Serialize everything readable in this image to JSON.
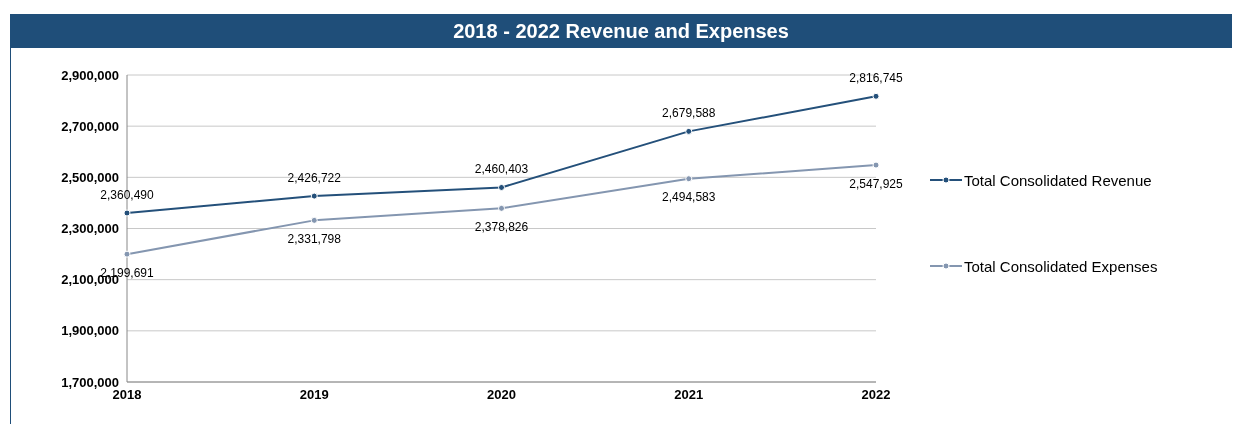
{
  "chart_data": {
    "type": "line",
    "title": "2018 - 2022 Revenue and Expenses",
    "categories": [
      "2018",
      "2019",
      "2020",
      "2021",
      "2022"
    ],
    "series": [
      {
        "name": "Total Consolidated Revenue",
        "color": "#24507a",
        "values": [
          2360490,
          2426722,
          2460403,
          2679588,
          2816745
        ],
        "value_labels": [
          "2,360,490",
          "2,426,722",
          "2,460,403",
          "2,679,588",
          "2,816,745"
        ]
      },
      {
        "name": "Total Consolidated Expenses",
        "color": "#8496b0",
        "values": [
          2199691,
          2331798,
          2378826,
          2494583,
          2547925
        ],
        "value_labels": [
          "2,199,691",
          "2,331,798",
          "2,378,826",
          "2,494,583",
          "2,547,925"
        ]
      }
    ],
    "ylim": [
      1700000,
      2900000
    ],
    "yticks": [
      {
        "value": 1700000,
        "label": "1,700,000"
      },
      {
        "value": 1900000,
        "label": "1,900,000"
      },
      {
        "value": 2100000,
        "label": "2,100,000"
      },
      {
        "value": 2300000,
        "label": "2,300,000"
      },
      {
        "value": 2500000,
        "label": "2,500,000"
      },
      {
        "value": 2700000,
        "label": "2,700,000"
      },
      {
        "value": 2900000,
        "label": "2,900,000"
      }
    ],
    "grid": "y",
    "legend": "right",
    "marker": "circle",
    "line_style": "solid"
  }
}
